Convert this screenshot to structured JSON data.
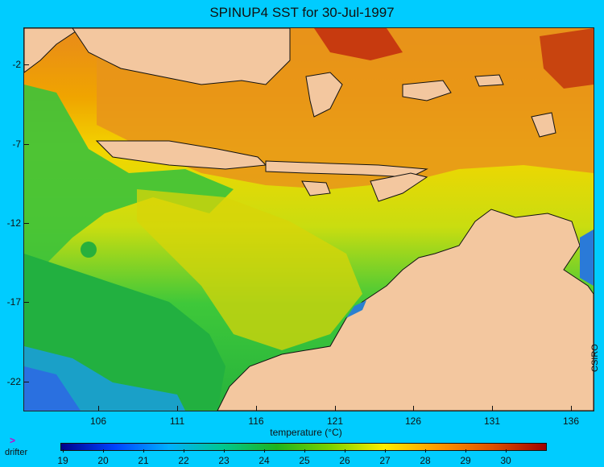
{
  "title": "SPINUP4 SST for 30-Jul-1997",
  "map": {
    "lat_labels": [
      "-2",
      "-7",
      "-12",
      "-17",
      "-22"
    ],
    "lon_labels": [
      "106",
      "111",
      "116",
      "121",
      "126",
      "131",
      "136"
    ],
    "land_color": "#f3c79f"
  },
  "colorbar": {
    "label": "temperature (°C)",
    "ticks": [
      "19",
      "20",
      "21",
      "22",
      "23",
      "24",
      "25",
      "26",
      "27",
      "28",
      "29",
      "30"
    ],
    "gradient": [
      "#00008b",
      "#0044ff",
      "#00b0ff",
      "#00c890",
      "#1eb41e",
      "#7ad200",
      "#ffee00",
      "#ff9900",
      "#e05000",
      "#a00000"
    ]
  },
  "legend": {
    "drifter_symbol": ">",
    "drifter_label": "drifter"
  },
  "credit": "CSIRO"
}
